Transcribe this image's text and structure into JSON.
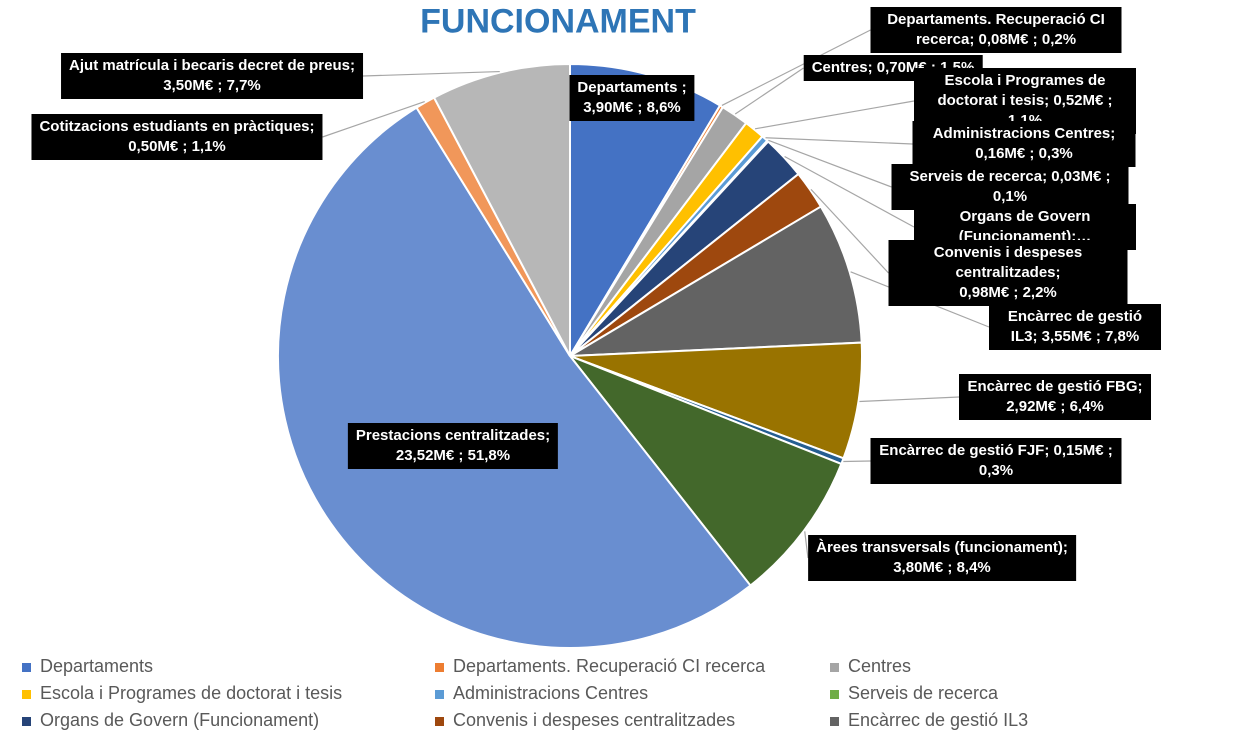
{
  "chart_data": {
    "type": "pie",
    "title": "FUNCIONAMENT",
    "categories": [
      "Departaments",
      "Departaments. Recuperació CI recerca",
      "Centres",
      "Escola i Programes de doctorat i tesis",
      "Administracions Centres",
      "Serveis de recerca",
      "Organs de Govern (Funcionament)",
      "Convenis i despeses centralitzades",
      "Encàrrec de gestió IL3",
      "Encàrrec de gestió FBG",
      "Encàrrec de gestió FJF",
      "Àrees transversals (funcionament)",
      "Prestacions centralitzades",
      "Cotitzacions estudiants en pràctiques",
      "Ajut matrícula i becaris decret de preus"
    ],
    "values": [
      3.9,
      0.08,
      0.7,
      0.52,
      0.16,
      0.03,
      1.1,
      0.98,
      3.55,
      2.92,
      0.15,
      3.8,
      23.52,
      0.5,
      3.5
    ],
    "value_labels": [
      "Departaments ;\n3,90M€ ; 8,6%",
      "Departaments. Recuperació CI recerca;  0,08M€ ; 0,2%",
      "Centres;  0,70M€ ; 1,5%",
      "Escola i Programes de doctorat i tesis;  0,52M€ ; 1,1%",
      "Administracions  Centres;  0,16M€ ; 0,3%",
      "Serveis de recerca;  0,03M€ ; 0,1%",
      "Organs de Govern (Funcionament);…",
      "Convenis i despeses centralitzades;\n0,98M€ ; 2,2%",
      "Encàrrec de gestió IL3;  3,55M€ ; 7,8%",
      "Encàrrec de gestió FBG;  2,92M€ ; 6,4%",
      "Encàrrec de gestió FJF;  0,15M€ ; 0,3%",
      "Àrees transversals (funcionament);\n3,80M€ ; 8,4%",
      "Prestacions centralitzades;\n23,52M€ ; 51,8%",
      "Cotitzacions estudiants en pràctiques;\n0,50M€ ; 1,1%",
      "Ajut matrícula i becaris decret de preus;\n3,50M€ ; 7,7%"
    ],
    "colors": [
      "#4472c4",
      "#ed7d31",
      "#a5a5a5",
      "#ffc000",
      "#5b9bd5",
      "#70ad47",
      "#264478",
      "#9e480e",
      "#636363",
      "#997300",
      "#255e91",
      "#43682b",
      "#698ed0",
      "#f1975a",
      "#b7b7b7"
    ],
    "legend": {
      "position": "bottom",
      "entries": 9
    }
  }
}
